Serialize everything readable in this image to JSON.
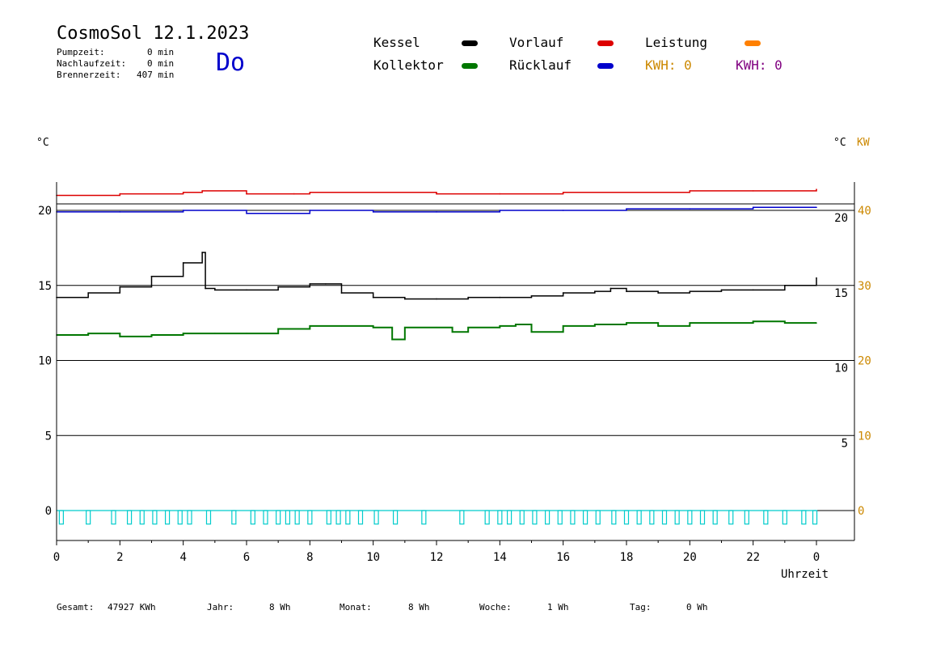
{
  "header": {
    "title": "CosmoSol 12.1.2023",
    "day": "Do",
    "pumpzeit_label": "Pumpzeit:",
    "pumpzeit_value": "0 min",
    "nachlaufzeit_label": "Nachlaufzeit:",
    "nachlaufzeit_value": "0 min",
    "brennerzeit_label": "Brennerzeit:",
    "brennerzeit_value": "407 min"
  },
  "legend": {
    "kessel": "Kessel",
    "kollektor": "Kollektor",
    "vorlauf": "Vorlauf",
    "ruecklauf": "Rücklauf",
    "leistung": "Leistung",
    "kwh_orange": "KWH: 0",
    "kwh_purple": "KWH: 0"
  },
  "colors": {
    "kessel": "#000000",
    "kollektor": "#007700",
    "vorlauf": "#dd0000",
    "ruecklauf": "#0000cc",
    "leistung": "#ff8000",
    "kwh_purple": "#800080",
    "pump": "#00cccc",
    "axis_right_kw": "#cc8800"
  },
  "footer": {
    "gesamt_label": "Gesamt:",
    "gesamt_value": "47927 KWh",
    "jahr_label": "Jahr:",
    "jahr_value": "8 Wh",
    "monat_label": "Monat:",
    "monat_value": "8 Wh",
    "woche_label": "Woche:",
    "woche_value": "1 Wh",
    "tag_label": "Tag:",
    "tag_value": "0 Wh"
  },
  "chart_data": {
    "type": "line",
    "xlabel": "Uhrzeit",
    "ylabel_left": "°C",
    "ylabel_right": "°C",
    "ylabel_right_kw": "KW",
    "xlim": [
      0,
      24
    ],
    "ylim": [
      -1.5,
      22
    ],
    "x_ticks": [
      "0",
      "2",
      "4",
      "6",
      "8",
      "10",
      "12",
      "14",
      "16",
      "18",
      "20",
      "22",
      "0"
    ],
    "y_ticks_left": [
      "0",
      "5",
      "10",
      "15",
      "20"
    ],
    "y_ticks_right": [
      "5",
      "10",
      "15",
      "20"
    ],
    "y_ticks_right_kw": [
      "0",
      "10",
      "20",
      "30",
      "40"
    ],
    "grid_y": [
      0,
      5,
      10,
      15,
      20
    ],
    "series": [
      {
        "name": "Vorlauf",
        "color": "#dd0000",
        "x": [
          0,
          2,
          4,
          4.6,
          6,
          7.5,
          8,
          10,
          12,
          14,
          16,
          18,
          20,
          22,
          24
        ],
        "y": [
          21.0,
          21.1,
          21.2,
          21.3,
          21.1,
          21.1,
          21.2,
          21.2,
          21.1,
          21.1,
          21.2,
          21.2,
          21.3,
          21.3,
          21.4
        ]
      },
      {
        "name": "Rücklauf",
        "color": "#0000cc",
        "x": [
          0,
          2,
          4,
          6,
          8,
          10,
          12,
          14,
          16,
          18,
          20,
          22,
          24
        ],
        "y": [
          19.9,
          19.9,
          20.0,
          19.8,
          20.0,
          19.9,
          19.9,
          20.0,
          20.0,
          20.1,
          20.1,
          20.2,
          20.2
        ]
      },
      {
        "name": "Kessel",
        "color": "#000000",
        "x": [
          0,
          1,
          2,
          3,
          4,
          4.6,
          4.7,
          5,
          6,
          7,
          8,
          8.5,
          9,
          10,
          11,
          12,
          13,
          14,
          15,
          16,
          17,
          17.5,
          18,
          19,
          20,
          21,
          22,
          23,
          24
        ],
        "y": [
          14.2,
          14.5,
          14.9,
          15.6,
          16.5,
          17.2,
          14.8,
          14.7,
          14.7,
          14.9,
          15.1,
          15.1,
          14.5,
          14.2,
          14.1,
          14.1,
          14.2,
          14.2,
          14.3,
          14.5,
          14.6,
          14.8,
          14.6,
          14.5,
          14.6,
          14.7,
          14.7,
          15.0,
          15.5
        ]
      },
      {
        "name": "Kollektor",
        "color": "#007700",
        "x": [
          0,
          1,
          2,
          3,
          4,
          5,
          6,
          7,
          8,
          9,
          10,
          10.6,
          11,
          12,
          12.5,
          13,
          14,
          14.5,
          15,
          16,
          17,
          18,
          19,
          20,
          21,
          22,
          23,
          24
        ],
        "y": [
          11.7,
          11.8,
          11.6,
          11.7,
          11.8,
          11.8,
          11.8,
          12.1,
          12.3,
          12.3,
          12.2,
          11.4,
          12.2,
          12.2,
          11.9,
          12.2,
          12.3,
          12.4,
          11.9,
          12.3,
          12.4,
          12.5,
          12.3,
          12.5,
          12.5,
          12.6,
          12.5,
          12.5
        ]
      }
    ],
    "pump_pulses": {
      "name": "Pumpe",
      "color": "#00cccc",
      "x": [
        0.15,
        1.0,
        1.8,
        2.3,
        2.7,
        3.1,
        3.5,
        3.9,
        4.2,
        4.8,
        5.6,
        6.2,
        6.6,
        7.0,
        7.3,
        7.6,
        8.0,
        8.6,
        8.9,
        9.2,
        9.6,
        10.1,
        10.7,
        11.6,
        12.8,
        13.6,
        14.0,
        14.3,
        14.7,
        15.1,
        15.5,
        15.9,
        16.3,
        16.7,
        17.1,
        17.6,
        18.0,
        18.4,
        18.8,
        19.2,
        19.6,
        20.0,
        20.4,
        20.8,
        21.3,
        21.8,
        22.4,
        23.0,
        23.6,
        23.95
      ],
      "on_level": 0,
      "pulse_depth": -0.9
    }
  }
}
